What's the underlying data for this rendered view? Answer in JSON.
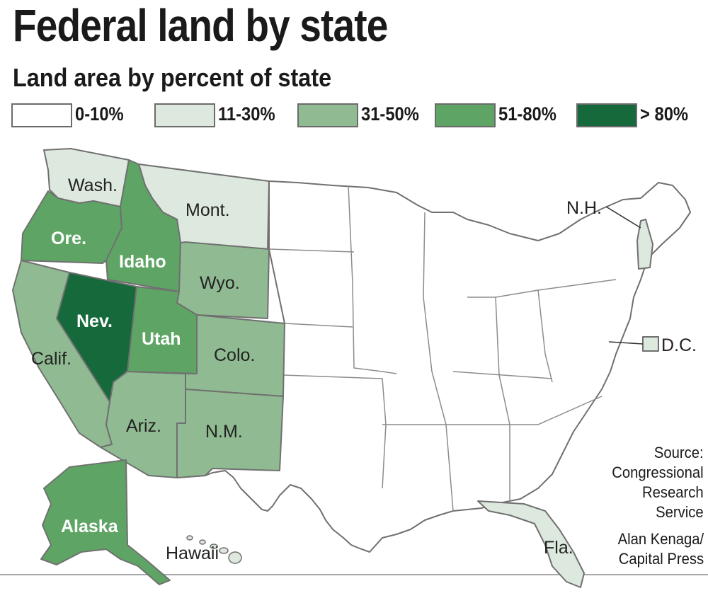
{
  "header": {
    "title": "Federal land by state",
    "subtitle": "Land area by percent of state"
  },
  "legend": [
    {
      "label": "0-10%",
      "color": "#ffffff"
    },
    {
      "label": "11-30%",
      "color": "#dde8de"
    },
    {
      "label": "31-50%",
      "color": "#90bb92"
    },
    {
      "label": "51-80%",
      "color": "#5ea565"
    },
    {
      "label": "> 80%",
      "color": "#15693a"
    }
  ],
  "states": {
    "wash": {
      "label": "Wash.",
      "category": "11-30%"
    },
    "mont": {
      "label": "Mont.",
      "category": "11-30%"
    },
    "ore": {
      "label": "Ore.",
      "category": "51-80%"
    },
    "idaho": {
      "label": "Idaho",
      "category": "51-80%"
    },
    "wyo": {
      "label": "Wyo.",
      "category": "31-50%"
    },
    "nev": {
      "label": "Nev.",
      "category": "> 80%"
    },
    "utah": {
      "label": "Utah",
      "category": "51-80%"
    },
    "colo": {
      "label": "Colo.",
      "category": "31-50%"
    },
    "calif": {
      "label": "Calif.",
      "category": "31-50%"
    },
    "ariz": {
      "label": "Ariz.",
      "category": "31-50%"
    },
    "nm": {
      "label": "N.M.",
      "category": "31-50%"
    },
    "alaska": {
      "label": "Alaska",
      "category": "51-80%"
    },
    "hawaii": {
      "label": "Hawaii",
      "category": "11-30%"
    },
    "fla": {
      "label": "Fla.",
      "category": "11-30%"
    },
    "nh": {
      "label": "N.H.",
      "category": "11-30%"
    },
    "dc": {
      "label": "D.C.",
      "category": "11-30%"
    }
  },
  "source": {
    "lines": [
      "Source:",
      "Congressional",
      "Research",
      "Service"
    ]
  },
  "credit": {
    "lines": [
      "Alan Kenaga/",
      "Capital Press"
    ]
  }
}
